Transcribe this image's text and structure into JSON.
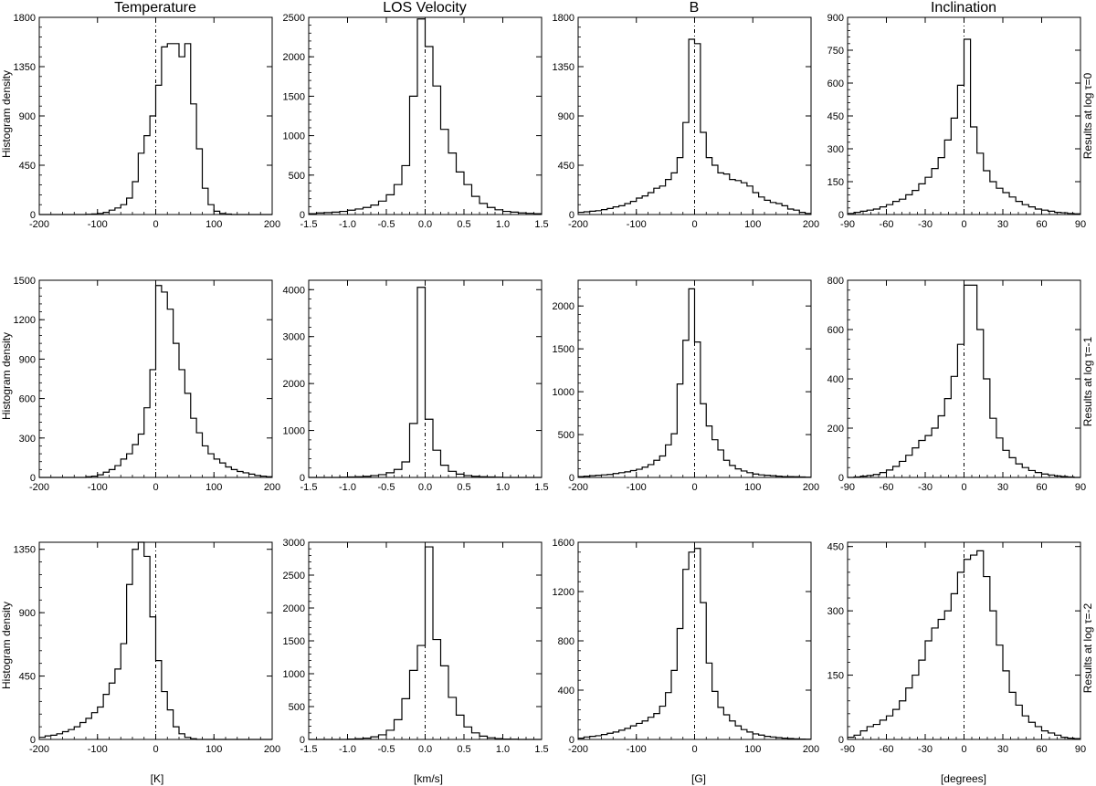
{
  "column_titles": [
    "Temperature",
    "LOS Velocity",
    "B",
    "Inclination"
  ],
  "x_axis_labels": [
    "[K]",
    "[km/s]",
    "[G]",
    "[degrees]"
  ],
  "y_axis_label": "Histogram density",
  "row_labels": [
    "Results at log τ=0",
    "Results at log τ=-1",
    "Results at log τ=-2"
  ],
  "chart_data": [
    {
      "type": "histogram",
      "row": 0,
      "col": 0,
      "ylabel": "Histogram density",
      "xlim": [
        -200,
        200
      ],
      "ylim": [
        0,
        1800
      ],
      "xticks": [
        -200,
        -100,
        0,
        100,
        200
      ],
      "yticks": [
        0,
        450,
        900,
        1350,
        1800
      ],
      "bins": [
        -200,
        -190,
        -180,
        -170,
        -160,
        -150,
        -140,
        -130,
        -120,
        -110,
        -100,
        -90,
        -80,
        -70,
        -60,
        -50,
        -40,
        -30,
        -20,
        -10,
        0,
        10,
        20,
        30,
        40,
        50,
        60,
        70,
        80,
        90,
        100,
        110,
        120,
        130,
        140,
        150,
        160,
        170,
        180,
        190,
        200
      ],
      "values": [
        0,
        0,
        0,
        0,
        0,
        0,
        0,
        0,
        2,
        5,
        10,
        20,
        40,
        60,
        90,
        150,
        300,
        560,
        720,
        900,
        1180,
        1530,
        1560,
        1560,
        1440,
        1560,
        1010,
        600,
        240,
        90,
        30,
        10,
        4,
        0,
        0,
        0,
        0,
        0,
        0,
        0
      ],
      "reference_line_x": 0
    },
    {
      "type": "histogram",
      "row": 0,
      "col": 1,
      "xlim": [
        -1.5,
        1.5
      ],
      "ylim": [
        0,
        2500
      ],
      "xticks": [
        "-1.5",
        "-1.0",
        "-0.5",
        "0.0",
        "0.5",
        "1.0",
        "1.5"
      ],
      "yticks": [
        0,
        500,
        1000,
        1500,
        2000,
        2500
      ],
      "bins": [
        -1.5,
        -1.4,
        -1.3,
        -1.2,
        -1.1,
        -1.0,
        -0.9,
        -0.8,
        -0.7,
        -0.6,
        -0.5,
        -0.4,
        -0.3,
        -0.2,
        -0.1,
        0.0,
        0.1,
        0.2,
        0.3,
        0.4,
        0.5,
        0.6,
        0.7,
        0.8,
        0.9,
        1.0,
        1.1,
        1.2,
        1.3,
        1.4,
        1.5
      ],
      "values": [
        10,
        20,
        25,
        30,
        40,
        55,
        70,
        90,
        120,
        170,
        250,
        380,
        620,
        1500,
        2480,
        2130,
        1630,
        1080,
        780,
        540,
        380,
        230,
        140,
        90,
        60,
        40,
        30,
        20,
        15,
        10
      ],
      "reference_line_x": 0
    },
    {
      "type": "histogram",
      "row": 0,
      "col": 2,
      "xlim": [
        -200,
        200
      ],
      "ylim": [
        0,
        1800
      ],
      "xticks": [
        -200,
        -100,
        0,
        100,
        200
      ],
      "yticks": [
        0,
        450,
        900,
        1350,
        1800
      ],
      "bins": [
        -200,
        -190,
        -180,
        -170,
        -160,
        -150,
        -140,
        -130,
        -120,
        -110,
        -100,
        -90,
        -80,
        -70,
        -60,
        -50,
        -40,
        -30,
        -20,
        -10,
        0,
        10,
        20,
        30,
        40,
        50,
        60,
        70,
        80,
        90,
        100,
        110,
        120,
        130,
        140,
        150,
        160,
        170,
        180,
        190,
        200
      ],
      "values": [
        20,
        25,
        30,
        35,
        45,
        55,
        70,
        80,
        100,
        120,
        150,
        170,
        200,
        240,
        260,
        320,
        380,
        520,
        840,
        1600,
        1560,
        750,
        520,
        450,
        380,
        370,
        320,
        310,
        290,
        260,
        200,
        160,
        130,
        110,
        100,
        80,
        50,
        40,
        20,
        10
      ],
      "reference_line_x": 0
    },
    {
      "type": "histogram",
      "row": 0,
      "col": 3,
      "xlim": [
        -90,
        90
      ],
      "ylim": [
        0,
        900
      ],
      "xticks": [
        -90,
        -60,
        -30,
        0,
        30,
        60,
        90
      ],
      "yticks": [
        0,
        150,
        300,
        450,
        600,
        750,
        900
      ],
      "bins": [
        -90,
        -85,
        -80,
        -75,
        -70,
        -65,
        -60,
        -55,
        -50,
        -45,
        -40,
        -35,
        -30,
        -25,
        -20,
        -15,
        -10,
        -5,
        0,
        5,
        10,
        15,
        20,
        25,
        30,
        35,
        40,
        45,
        50,
        55,
        60,
        65,
        70,
        75,
        80,
        85,
        90
      ],
      "values": [
        5,
        10,
        15,
        20,
        25,
        35,
        45,
        60,
        70,
        90,
        110,
        140,
        170,
        210,
        260,
        340,
        440,
        590,
        800,
        400,
        280,
        200,
        150,
        120,
        100,
        80,
        60,
        45,
        35,
        25,
        20,
        15,
        10,
        8,
        5,
        3
      ],
      "reference_line_x": 0
    },
    {
      "type": "histogram",
      "row": 1,
      "col": 0,
      "ylabel": "Histogram density",
      "xlim": [
        -200,
        200
      ],
      "ylim": [
        0,
        1500
      ],
      "xticks": [
        -200,
        -100,
        0,
        100,
        200
      ],
      "yticks": [
        0,
        300,
        600,
        900,
        1200,
        1500
      ],
      "bins": [
        -200,
        -190,
        -180,
        -170,
        -160,
        -150,
        -140,
        -130,
        -120,
        -110,
        -100,
        -90,
        -80,
        -70,
        -60,
        -50,
        -40,
        -30,
        -20,
        -10,
        0,
        10,
        20,
        30,
        40,
        50,
        60,
        70,
        80,
        90,
        100,
        110,
        120,
        130,
        140,
        150,
        160,
        170,
        180,
        190,
        200
      ],
      "values": [
        0,
        0,
        0,
        0,
        0,
        0,
        0,
        0,
        5,
        10,
        20,
        40,
        60,
        90,
        140,
        180,
        250,
        330,
        530,
        820,
        1460,
        1410,
        1280,
        1020,
        820,
        640,
        450,
        340,
        240,
        180,
        140,
        110,
        80,
        60,
        45,
        35,
        25,
        15,
        10,
        5
      ],
      "reference_line_x": 0
    },
    {
      "type": "histogram",
      "row": 1,
      "col": 1,
      "xlim": [
        -1.5,
        1.5
      ],
      "ylim": [
        0,
        4200
      ],
      "xticks": [
        "-1.5",
        "-1.0",
        "-0.5",
        "0.0",
        "0.5",
        "1.0",
        "1.5"
      ],
      "yticks": [
        0,
        1000,
        2000,
        3000,
        4000
      ],
      "bins": [
        -1.5,
        -1.4,
        -1.3,
        -1.2,
        -1.1,
        -1.0,
        -0.9,
        -0.8,
        -0.7,
        -0.6,
        -0.5,
        -0.4,
        -0.3,
        -0.2,
        -0.1,
        0.0,
        0.1,
        0.2,
        0.3,
        0.4,
        0.5,
        0.6,
        0.7,
        0.8,
        0.9,
        1.0,
        1.1,
        1.2,
        1.3,
        1.4,
        1.5
      ],
      "values": [
        0,
        0,
        0,
        0,
        5,
        10,
        15,
        25,
        40,
        60,
        100,
        170,
        330,
        1150,
        4050,
        1240,
        580,
        260,
        130,
        70,
        40,
        25,
        15,
        10,
        5,
        0,
        0,
        0,
        0,
        0
      ],
      "reference_line_x": 0
    },
    {
      "type": "histogram",
      "row": 1,
      "col": 2,
      "xlim": [
        -200,
        200
      ],
      "ylim": [
        0,
        2300
      ],
      "xticks": [
        -200,
        -100,
        0,
        100,
        200
      ],
      "yticks": [
        0,
        500,
        1000,
        1500,
        2000
      ],
      "bins": [
        -200,
        -190,
        -180,
        -170,
        -160,
        -150,
        -140,
        -130,
        -120,
        -110,
        -100,
        -90,
        -80,
        -70,
        -60,
        -50,
        -40,
        -30,
        -20,
        -10,
        0,
        10,
        20,
        30,
        40,
        50,
        60,
        70,
        80,
        90,
        100,
        110,
        120,
        130,
        140,
        150,
        160,
        170,
        180,
        190,
        200
      ],
      "values": [
        10,
        15,
        20,
        25,
        30,
        35,
        45,
        55,
        65,
        80,
        95,
        120,
        150,
        200,
        250,
        380,
        510,
        1090,
        1600,
        2200,
        1580,
        860,
        600,
        440,
        320,
        200,
        140,
        100,
        75,
        55,
        40,
        30,
        25,
        20,
        15,
        10,
        10,
        8,
        5,
        3
      ],
      "reference_line_x": 0
    },
    {
      "type": "histogram",
      "row": 1,
      "col": 3,
      "xlim": [
        -90,
        90
      ],
      "ylim": [
        0,
        800
      ],
      "xticks": [
        -90,
        -60,
        -30,
        0,
        30,
        60,
        90
      ],
      "yticks": [
        0,
        200,
        400,
        600,
        800
      ],
      "bins": [
        -90,
        -85,
        -80,
        -75,
        -70,
        -65,
        -60,
        -55,
        -50,
        -45,
        -40,
        -35,
        -30,
        -25,
        -20,
        -15,
        -10,
        -5,
        0,
        5,
        10,
        15,
        20,
        25,
        30,
        35,
        40,
        45,
        50,
        55,
        60,
        65,
        70,
        75,
        80,
        85,
        90
      ],
      "values": [
        0,
        2,
        5,
        8,
        12,
        20,
        30,
        45,
        65,
        90,
        120,
        150,
        170,
        200,
        250,
        320,
        410,
        540,
        780,
        780,
        600,
        400,
        240,
        160,
        110,
        80,
        55,
        40,
        28,
        20,
        14,
        10,
        6,
        4,
        2,
        0
      ],
      "reference_line_x": 0
    },
    {
      "type": "histogram",
      "row": 2,
      "col": 0,
      "ylabel": "Histogram density",
      "xlabel": "[K]",
      "xlim": [
        -200,
        200
      ],
      "ylim": [
        0,
        1400
      ],
      "xticks": [
        -200,
        -100,
        0,
        100,
        200
      ],
      "yticks": [
        0,
        450,
        900,
        1350
      ],
      "bins": [
        -200,
        -190,
        -180,
        -170,
        -160,
        -150,
        -140,
        -130,
        -120,
        -110,
        -100,
        -90,
        -80,
        -70,
        -60,
        -50,
        -40,
        -30,
        -20,
        -10,
        0,
        10,
        20,
        30,
        40,
        50,
        60,
        70,
        80,
        90,
        100,
        110,
        120,
        130,
        140,
        150,
        160,
        170,
        180,
        190,
        200
      ],
      "values": [
        15,
        25,
        30,
        40,
        55,
        70,
        90,
        120,
        150,
        190,
        230,
        320,
        400,
        500,
        680,
        1100,
        1350,
        1420,
        1300,
        870,
        560,
        340,
        210,
        90,
        40,
        15,
        5,
        0,
        0,
        0,
        0,
        0,
        0,
        0,
        0,
        0,
        0,
        0,
        0,
        0
      ],
      "reference_line_x": 0
    },
    {
      "type": "histogram",
      "row": 2,
      "col": 1,
      "xlabel": "[km/s]",
      "xlim": [
        -1.5,
        1.5
      ],
      "ylim": [
        0,
        3000
      ],
      "xticks": [
        "-1.5",
        "-1.0",
        "-0.5",
        "0.0",
        "0.5",
        "1.0",
        "1.5"
      ],
      "yticks": [
        0,
        500,
        1000,
        1500,
        2000,
        2500,
        3000
      ],
      "bins": [
        -1.5,
        -1.4,
        -1.3,
        -1.2,
        -1.1,
        -1.0,
        -0.9,
        -0.8,
        -0.7,
        -0.6,
        -0.5,
        -0.4,
        -0.3,
        -0.2,
        -0.1,
        0.0,
        0.1,
        0.2,
        0.3,
        0.4,
        0.5,
        0.6,
        0.7,
        0.8,
        0.9,
        1.0,
        1.1,
        1.2,
        1.3,
        1.4,
        1.5
      ],
      "values": [
        0,
        0,
        0,
        0,
        0,
        5,
        10,
        20,
        40,
        70,
        140,
        300,
        620,
        1050,
        1430,
        2930,
        1520,
        1120,
        640,
        370,
        190,
        100,
        50,
        25,
        12,
        6,
        3,
        0,
        0,
        0
      ],
      "reference_line_x": 0
    },
    {
      "type": "histogram",
      "row": 2,
      "col": 2,
      "xlabel": "[G]",
      "xlim": [
        -200,
        200
      ],
      "ylim": [
        0,
        1600
      ],
      "xticks": [
        -200,
        -100,
        0,
        100,
        200
      ],
      "yticks": [
        0,
        400,
        800,
        1200,
        1600
      ],
      "bins": [
        -200,
        -190,
        -180,
        -170,
        -160,
        -150,
        -140,
        -130,
        -120,
        -110,
        -100,
        -90,
        -80,
        -70,
        -60,
        -50,
        -40,
        -30,
        -20,
        -10,
        0,
        10,
        20,
        30,
        40,
        50,
        60,
        70,
        80,
        90,
        100,
        110,
        120,
        130,
        140,
        150,
        160,
        170,
        180,
        190,
        200
      ],
      "values": [
        10,
        20,
        25,
        30,
        40,
        50,
        60,
        75,
        90,
        110,
        130,
        150,
        180,
        210,
        270,
        380,
        560,
        900,
        1380,
        1520,
        1550,
        1110,
        620,
        390,
        260,
        200,
        150,
        110,
        80,
        60,
        45,
        35,
        25,
        20,
        15,
        10,
        8,
        5,
        3,
        2
      ],
      "reference_line_x": 0
    },
    {
      "type": "histogram",
      "row": 2,
      "col": 3,
      "xlabel": "[degrees]",
      "xlim": [
        -90,
        90
      ],
      "ylim": [
        0,
        460
      ],
      "xticks": [
        -90,
        -60,
        -30,
        0,
        30,
        60,
        90
      ],
      "yticks": [
        0,
        150,
        300,
        450
      ],
      "bins": [
        -90,
        -85,
        -80,
        -75,
        -70,
        -65,
        -60,
        -55,
        -50,
        -45,
        -40,
        -35,
        -30,
        -25,
        -20,
        -15,
        -10,
        -5,
        0,
        5,
        10,
        15,
        20,
        25,
        30,
        35,
        40,
        45,
        50,
        55,
        60,
        65,
        70,
        75,
        80,
        85,
        90
      ],
      "values": [
        5,
        10,
        20,
        30,
        35,
        45,
        55,
        70,
        90,
        120,
        150,
        185,
        230,
        260,
        280,
        300,
        340,
        390,
        420,
        430,
        440,
        380,
        300,
        220,
        160,
        110,
        80,
        55,
        40,
        30,
        20,
        15,
        10,
        5,
        3,
        2
      ],
      "reference_line_x": 0
    }
  ]
}
